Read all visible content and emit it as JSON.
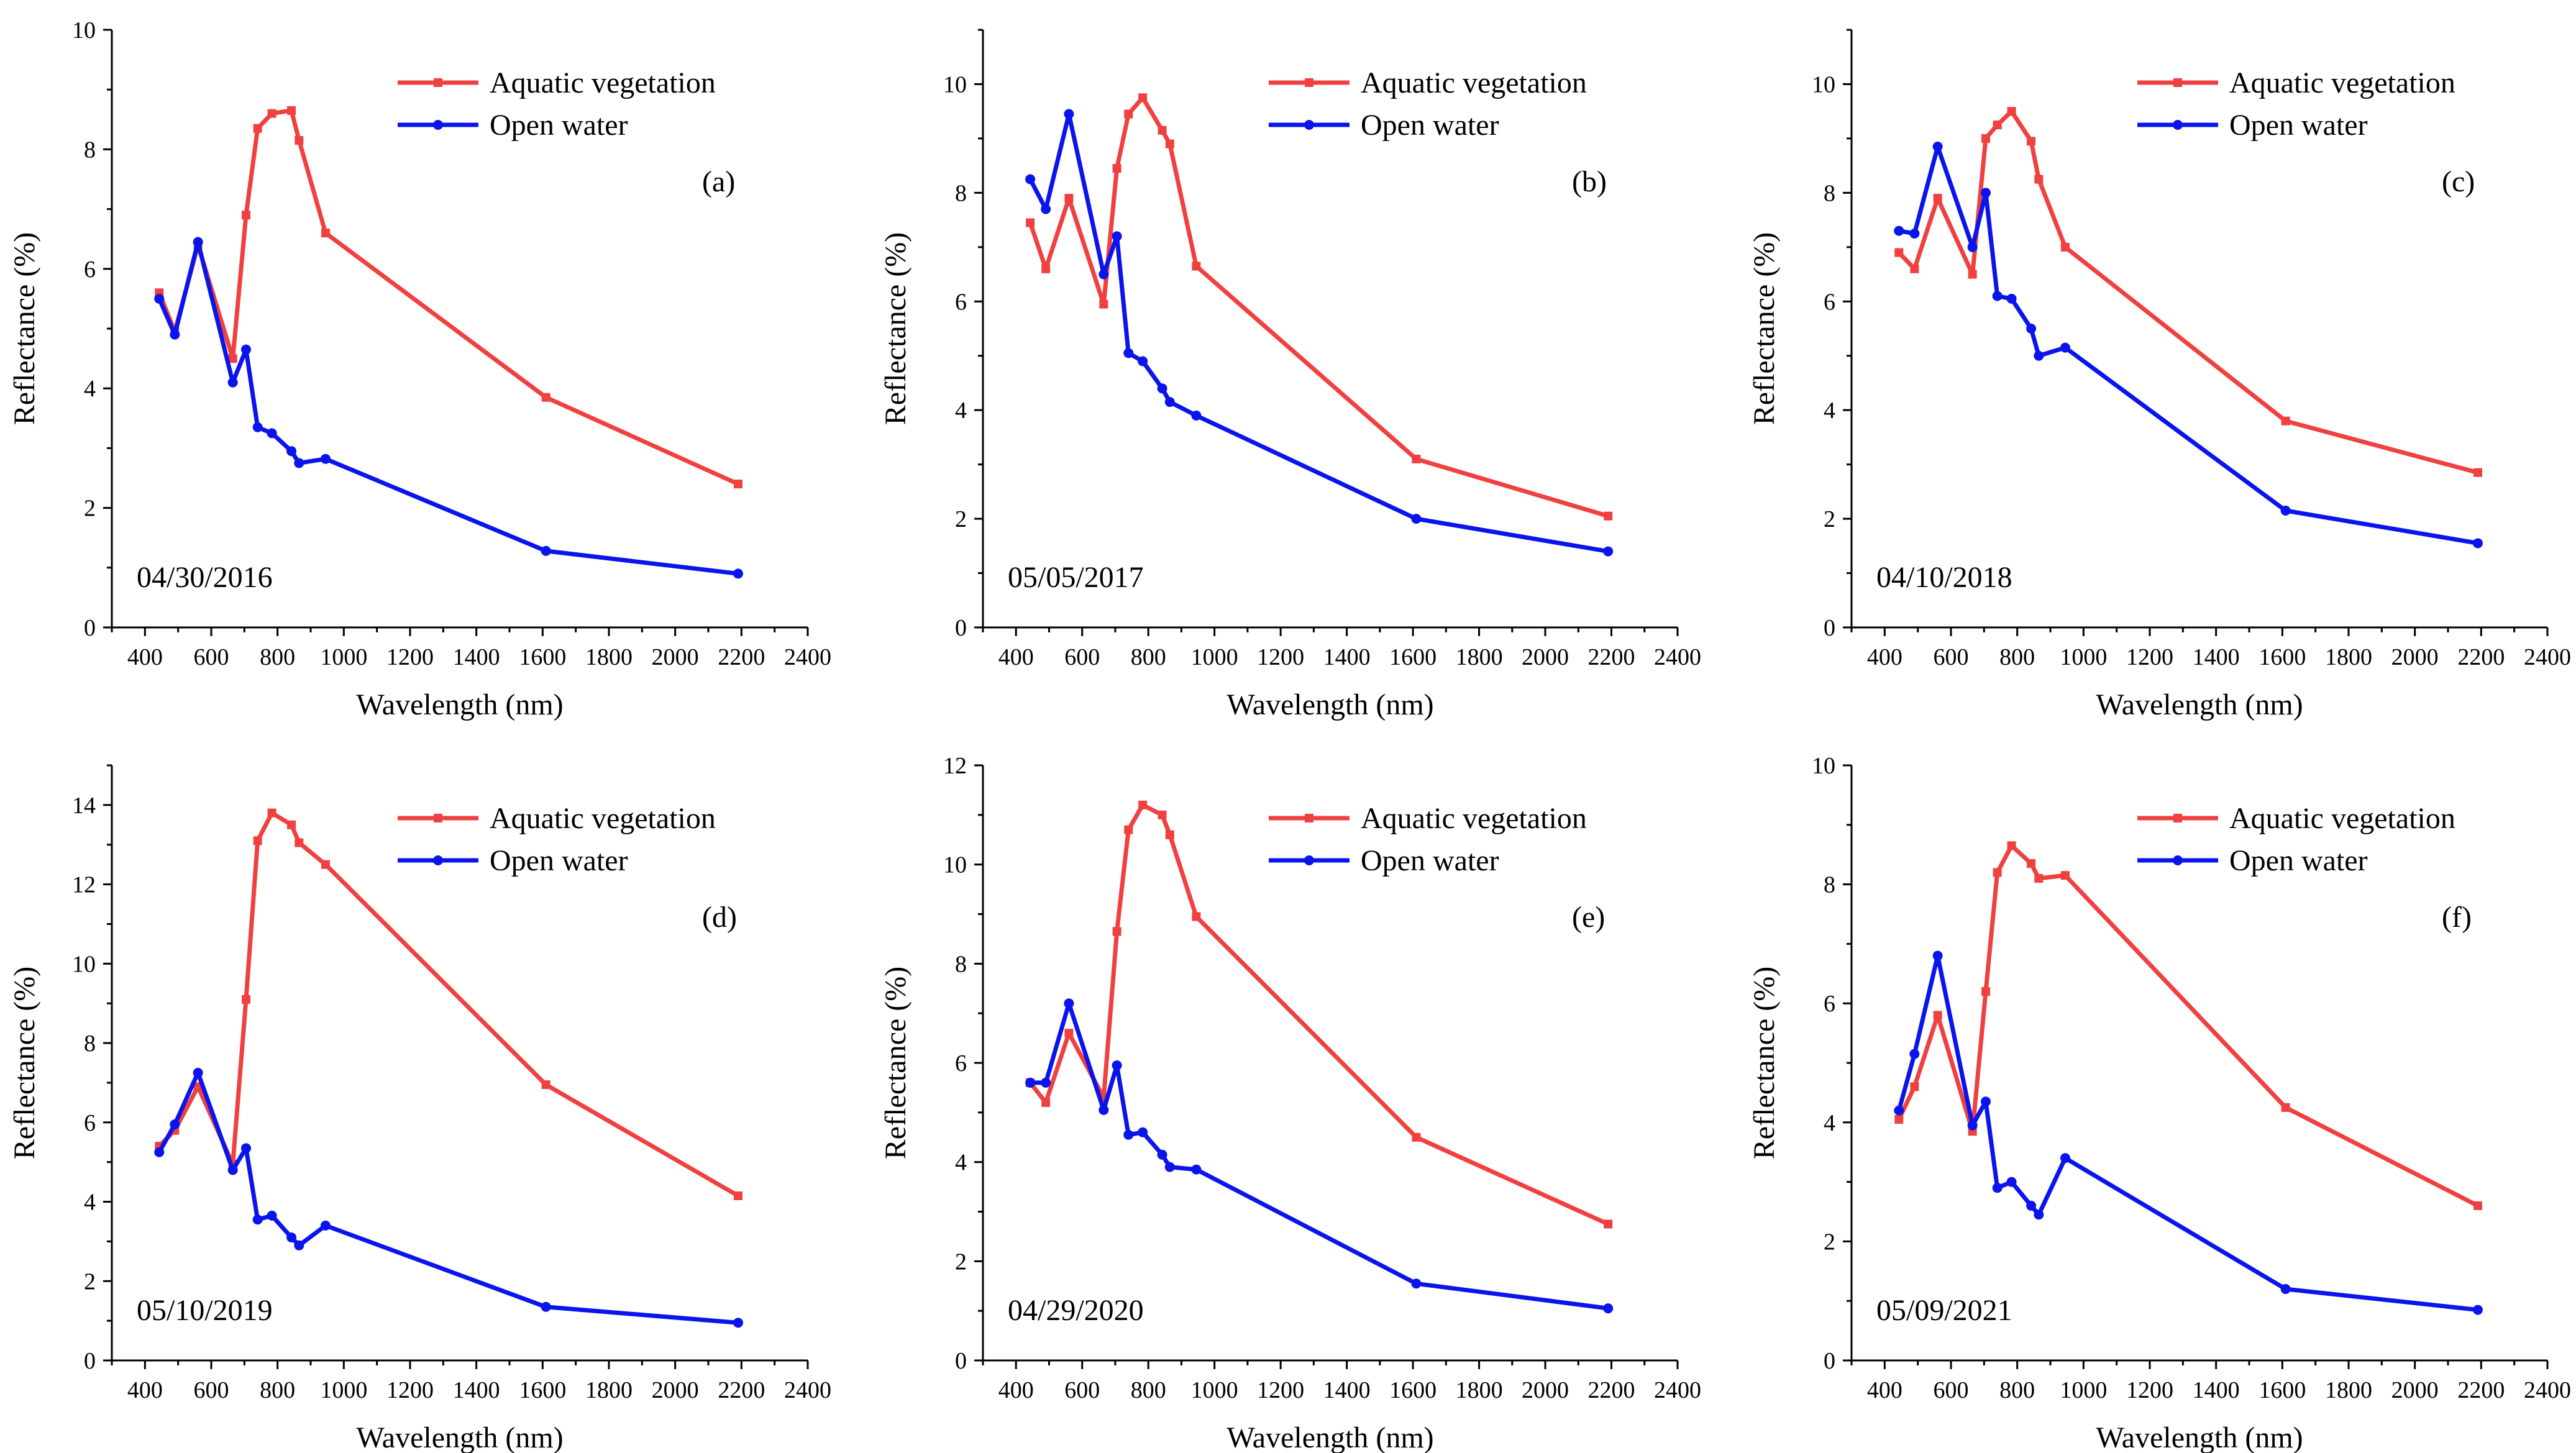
{
  "figure": {
    "x_label": "Wavelength (nm)",
    "y_label": "Reflectance (%)"
  },
  "series_styles": [
    {
      "name": "Aquatic vegetation",
      "color": "#f04040",
      "marker": "square"
    },
    {
      "name": "Open water",
      "color": "#0a14ec",
      "marker": "circle"
    }
  ],
  "chart_data": [
    {
      "type": "line",
      "panel_label": "(a)",
      "date": "04/30/2016",
      "xlabel": "Wavelength (nm)",
      "ylabel": "Reflectance (%)",
      "xlim": [
        300,
        2400
      ],
      "ylim": [
        0,
        10
      ],
      "x_ticks": [
        400,
        600,
        800,
        1000,
        1200,
        1400,
        1600,
        1800,
        2000,
        2200,
        2400
      ],
      "y_ticks": [
        0,
        2,
        4,
        6,
        8,
        10
      ],
      "x": [
        443,
        490,
        560,
        665,
        705,
        740,
        783,
        842,
        865,
        945,
        1610,
        2190
      ],
      "series": [
        {
          "name": "Aquatic vegetation",
          "values": [
            5.6,
            4.95,
            6.4,
            4.5,
            6.9,
            8.35,
            8.6,
            8.65,
            8.15,
            6.6,
            3.85,
            2.4
          ]
        },
        {
          "name": "Open water",
          "values": [
            5.5,
            4.9,
            6.45,
            4.1,
            4.65,
            3.35,
            3.25,
            2.95,
            2.75,
            2.82,
            1.28,
            0.9
          ]
        }
      ]
    },
    {
      "type": "line",
      "panel_label": "(b)",
      "date": "05/05/2017",
      "xlabel": "Wavelength (nm)",
      "ylabel": "Reflectance (%)",
      "xlim": [
        300,
        2400
      ],
      "ylim": [
        0,
        11
      ],
      "x_ticks": [
        400,
        600,
        800,
        1000,
        1200,
        1400,
        1600,
        1800,
        2000,
        2200,
        2400
      ],
      "y_ticks": [
        0,
        2,
        4,
        6,
        8,
        10
      ],
      "x": [
        443,
        490,
        560,
        665,
        705,
        740,
        783,
        842,
        865,
        945,
        1610,
        2190
      ],
      "series": [
        {
          "name": "Aquatic vegetation",
          "values": [
            7.45,
            6.6,
            7.9,
            5.95,
            8.45,
            9.45,
            9.75,
            9.15,
            8.9,
            6.65,
            3.1,
            2.05
          ]
        },
        {
          "name": "Open water",
          "values": [
            8.25,
            7.7,
            9.45,
            6.5,
            7.2,
            5.05,
            4.9,
            4.4,
            4.15,
            3.9,
            2.0,
            1.4
          ]
        }
      ]
    },
    {
      "type": "line",
      "panel_label": "(c)",
      "date": "04/10/2018",
      "xlabel": "Wavelength (nm)",
      "ylabel": "Reflectance (%)",
      "xlim": [
        300,
        2400
      ],
      "ylim": [
        0,
        11
      ],
      "x_ticks": [
        400,
        600,
        800,
        1000,
        1200,
        1400,
        1600,
        1800,
        2000,
        2200,
        2400
      ],
      "y_ticks": [
        0,
        2,
        4,
        6,
        8,
        10
      ],
      "x": [
        443,
        490,
        560,
        665,
        705,
        740,
        783,
        842,
        865,
        945,
        1610,
        2190
      ],
      "series": [
        {
          "name": "Aquatic vegetation",
          "values": [
            6.9,
            6.6,
            7.9,
            6.5,
            9.0,
            9.25,
            9.5,
            8.95,
            8.25,
            7.0,
            3.8,
            2.85
          ]
        },
        {
          "name": "Open water",
          "values": [
            7.3,
            7.25,
            8.85,
            7.0,
            8.0,
            6.1,
            6.05,
            5.5,
            5.0,
            5.15,
            2.15,
            1.55
          ]
        }
      ]
    },
    {
      "type": "line",
      "panel_label": "(d)",
      "date": "05/10/2019",
      "xlabel": "Wavelength (nm)",
      "ylabel": "Reflectance (%)",
      "xlim": [
        300,
        2400
      ],
      "ylim": [
        0,
        15
      ],
      "x_ticks": [
        400,
        600,
        800,
        1000,
        1200,
        1400,
        1600,
        1800,
        2000,
        2200,
        2400
      ],
      "y_ticks": [
        0,
        2,
        4,
        6,
        8,
        10,
        12,
        14
      ],
      "x": [
        443,
        490,
        560,
        665,
        705,
        740,
        783,
        842,
        865,
        945,
        1610,
        2190
      ],
      "series": [
        {
          "name": "Aquatic vegetation",
          "values": [
            5.4,
            5.8,
            6.9,
            4.95,
            9.1,
            13.1,
            13.8,
            13.5,
            13.05,
            12.5,
            6.95,
            4.15
          ]
        },
        {
          "name": "Open water",
          "values": [
            5.25,
            5.95,
            7.25,
            4.8,
            5.35,
            3.55,
            3.65,
            3.1,
            2.9,
            3.4,
            1.35,
            0.95
          ]
        }
      ]
    },
    {
      "type": "line",
      "panel_label": "(e)",
      "date": "04/29/2020",
      "xlabel": "Wavelength (nm)",
      "ylabel": "Reflectance (%)",
      "xlim": [
        300,
        2400
      ],
      "ylim": [
        0,
        12
      ],
      "x_ticks": [
        400,
        600,
        800,
        1000,
        1200,
        1400,
        1600,
        1800,
        2000,
        2200,
        2400
      ],
      "y_ticks": [
        0,
        2,
        4,
        6,
        8,
        10,
        12
      ],
      "x": [
        443,
        490,
        560,
        665,
        705,
        740,
        783,
        842,
        865,
        945,
        1610,
        2190
      ],
      "series": [
        {
          "name": "Aquatic vegetation",
          "values": [
            5.6,
            5.2,
            6.6,
            5.3,
            8.65,
            10.7,
            11.2,
            11.0,
            10.6,
            8.95,
            4.5,
            2.75
          ]
        },
        {
          "name": "Open water",
          "values": [
            5.6,
            5.6,
            7.2,
            5.05,
            5.95,
            4.55,
            4.6,
            4.15,
            3.9,
            3.85,
            1.55,
            1.05
          ]
        }
      ]
    },
    {
      "type": "line",
      "panel_label": "(f)",
      "date": "05/09/2021",
      "xlabel": "Wavelength (nm)",
      "ylabel": "Reflectance (%)",
      "xlim": [
        300,
        2400
      ],
      "ylim": [
        0,
        10
      ],
      "x_ticks": [
        400,
        600,
        800,
        1000,
        1200,
        1400,
        1600,
        1800,
        2000,
        2200,
        2400
      ],
      "y_ticks": [
        0,
        2,
        4,
        6,
        8,
        10
      ],
      "x": [
        443,
        490,
        560,
        665,
        705,
        740,
        783,
        842,
        865,
        945,
        1610,
        2190
      ],
      "series": [
        {
          "name": "Aquatic vegetation",
          "values": [
            4.05,
            4.6,
            5.8,
            3.85,
            6.2,
            8.2,
            8.65,
            8.35,
            8.1,
            8.15,
            4.25,
            2.6
          ]
        },
        {
          "name": "Open water",
          "values": [
            4.2,
            5.15,
            6.8,
            3.95,
            4.35,
            2.9,
            3.0,
            2.6,
            2.45,
            3.4,
            1.2,
            0.85
          ]
        }
      ]
    }
  ]
}
